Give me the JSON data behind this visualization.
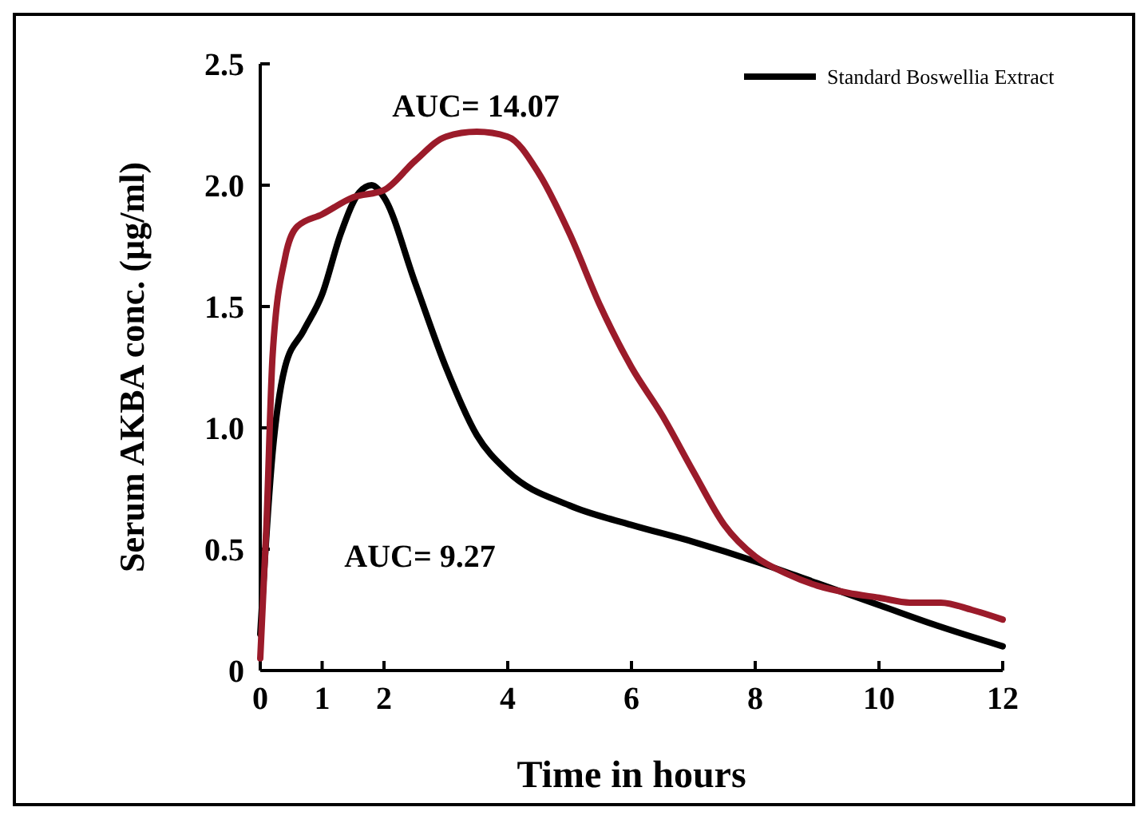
{
  "chart_data": {
    "type": "line",
    "xlabel": "Time in hours",
    "ylabel": "Serum AKBA conc. (µg/ml)",
    "xlim": [
      0,
      12
    ],
    "xticks": [
      0,
      1,
      2,
      4,
      6,
      8,
      10,
      12
    ],
    "ylim": [
      0,
      2.5
    ],
    "yticks": [
      0,
      0.5,
      {
        "value": 1,
        "label": "1.0"
      },
      1.5,
      {
        "value": 2,
        "label": "2.0"
      },
      2.5
    ],
    "legend": "top right",
    "grid": false,
    "line_style": "solid",
    "series": [
      {
        "name": "Standard Boswellia Extract",
        "color": "#000000",
        "x": [
          0,
          0.2,
          0.4,
          0.7,
          1,
          1.3,
          1.6,
          1.8,
          2,
          2.5,
          3,
          3.5,
          4,
          5,
          6,
          7,
          8,
          9,
          10,
          11,
          12
        ],
        "values": [
          0.15,
          0.9,
          1.25,
          1.4,
          1.55,
          1.8,
          1.97,
          2.0,
          1.95,
          1.6,
          1.25,
          0.97,
          0.82,
          0.68,
          0.6,
          0.53,
          0.45,
          0.36,
          0.27,
          0.18,
          0.1
        ]
      },
      {
        "color": "#9b1b2a",
        "x": [
          0,
          0.1,
          0.2,
          0.4,
          0.6,
          1,
          1.5,
          2,
          2.5,
          3,
          3.5,
          4,
          4.5,
          5,
          5.5,
          6,
          6.5,
          7,
          7.5,
          8,
          8.5,
          9,
          9.5,
          10,
          10.5,
          11,
          11.5,
          12
        ],
        "values": [
          0.05,
          0.6,
          1.3,
          1.7,
          1.83,
          1.88,
          1.95,
          1.98,
          2.1,
          2.2,
          2.22,
          2.2,
          2.05,
          1.8,
          1.5,
          1.25,
          1.05,
          0.82,
          0.6,
          0.47,
          0.4,
          0.35,
          0.32,
          0.3,
          0.28,
          0.28,
          0.25,
          0.21
        ]
      }
    ],
    "annotations": [
      "AUC= 14.07",
      "AUC= 9.27"
    ]
  }
}
